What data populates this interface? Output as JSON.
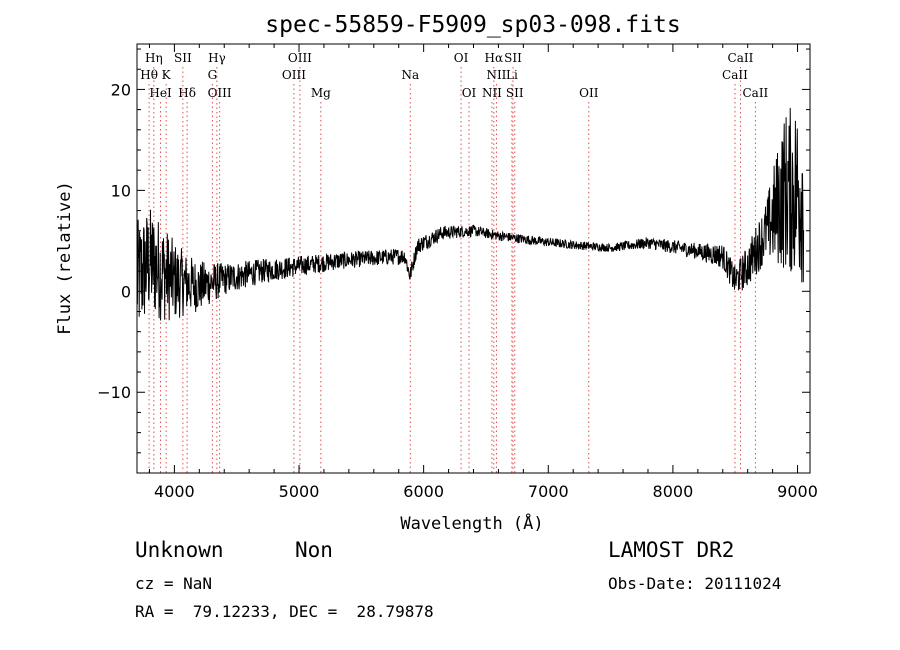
{
  "title": "spec-55859-F5909_sp03-098.fits",
  "footer": {
    "class_label": "Unknown",
    "subclass_label": "Non",
    "survey": "LAMOST DR2",
    "cz": "cz = NaN",
    "obs_date": "Obs-Date: 20111024",
    "coords": "RA =  79.12233, DEC =  28.79878"
  },
  "chart_data": {
    "type": "line",
    "title": "spec-55859-F5909_sp03-098.fits",
    "xlabel": "Wavelength (Å)",
    "ylabel": "Flux (relative)",
    "xlim": [
      3700,
      9100
    ],
    "ylim": [
      -18,
      24.5
    ],
    "xticks": [
      4000,
      5000,
      6000,
      7000,
      8000,
      9000
    ],
    "yticks": [
      -10,
      0,
      10,
      20
    ],
    "grid": false,
    "line_color": "#000000",
    "marker_color": "#e05050",
    "lines": [
      {
        "label": "Hη",
        "wl": 3835,
        "row": 0
      },
      {
        "label": "Hθ",
        "wl": 3797,
        "row": 1
      },
      {
        "label": "K",
        "wl": 3934,
        "row": 1
      },
      {
        "label": "HeI",
        "wl": 3889,
        "row": 2
      },
      {
        "label": "SII",
        "wl": 4068,
        "row": 0
      },
      {
        "label": "Hδ",
        "wl": 4102,
        "row": 2
      },
      {
        "label": "Hγ",
        "wl": 4341,
        "row": 0
      },
      {
        "label": "G",
        "wl": 4305,
        "row": 1
      },
      {
        "label": "OIII",
        "wl": 4363,
        "row": 2
      },
      {
        "label": "OIII",
        "wl": 5007,
        "row": 0
      },
      {
        "label": "OIII",
        "wl": 4959,
        "row": 1
      },
      {
        "label": "Mg",
        "wl": 5175,
        "row": 2
      },
      {
        "label": "Na",
        "wl": 5893,
        "row": 1
      },
      {
        "label": "OI",
        "wl": 6300,
        "row": 0
      },
      {
        "label": "OI",
        "wl": 6364,
        "row": 2
      },
      {
        "label": "Hα",
        "wl": 6563,
        "row": 0
      },
      {
        "label": "SII",
        "wl": 6717,
        "row": 0
      },
      {
        "label": "NII",
        "wl": 6584,
        "row": 1
      },
      {
        "label": "Li",
        "wl": 6708,
        "row": 1
      },
      {
        "label": "NII",
        "wl": 6548,
        "row": 2
      },
      {
        "label": "SII",
        "wl": 6731,
        "row": 2
      },
      {
        "label": "OII",
        "wl": 7325,
        "row": 2
      },
      {
        "label": "CaII",
        "wl": 8542,
        "row": 0
      },
      {
        "label": "CaII",
        "wl": 8498,
        "row": 1
      },
      {
        "label": "CaII",
        "wl": 8662,
        "row": 2
      }
    ],
    "spectrum_anchors": [
      [
        3700,
        1
      ],
      [
        3800,
        3
      ],
      [
        4000,
        1
      ],
      [
        4200,
        0.5
      ],
      [
        4400,
        1.2
      ],
      [
        4700,
        2
      ],
      [
        5000,
        2.5
      ],
      [
        5300,
        3
      ],
      [
        5600,
        3.3
      ],
      [
        5850,
        3.5
      ],
      [
        5890,
        1.5
      ],
      [
        5950,
        4.5
      ],
      [
        6150,
        5.8
      ],
      [
        6400,
        6
      ],
      [
        6600,
        5.5
      ],
      [
        6900,
        5
      ],
      [
        7200,
        4.6
      ],
      [
        7500,
        4.3
      ],
      [
        7800,
        4.8
      ],
      [
        8100,
        4.2
      ],
      [
        8400,
        3.5
      ],
      [
        8500,
        1
      ],
      [
        8600,
        2.5
      ],
      [
        8750,
        6
      ],
      [
        8900,
        10
      ],
      [
        9100,
        10
      ]
    ],
    "noise_profile": [
      [
        3700,
        6
      ],
      [
        3900,
        5
      ],
      [
        4100,
        3
      ],
      [
        4400,
        1.6
      ],
      [
        4700,
        1.2
      ],
      [
        5000,
        1.0
      ],
      [
        5500,
        0.8
      ],
      [
        6000,
        0.8
      ],
      [
        6500,
        0.5
      ],
      [
        7500,
        0.4
      ],
      [
        8200,
        0.8
      ],
      [
        8500,
        1.5
      ],
      [
        8750,
        3
      ],
      [
        8900,
        8
      ],
      [
        9100,
        10
      ]
    ]
  }
}
